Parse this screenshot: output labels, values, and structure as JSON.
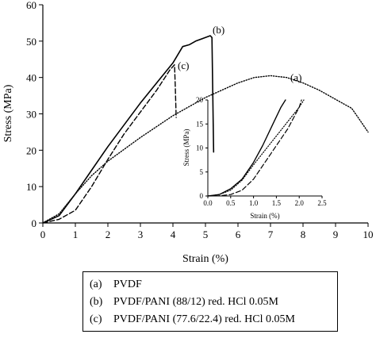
{
  "chart_data": [
    {
      "type": "line",
      "xlabel": "Strain (%)",
      "ylabel": "Stress (MPa)",
      "xlim": [
        0,
        10
      ],
      "ylim": [
        0,
        60
      ],
      "xticks": [
        "0",
        "1",
        "2",
        "3",
        "4",
        "5",
        "6",
        "7",
        "8",
        "9",
        "10"
      ],
      "yticks": [
        "0",
        "10",
        "20",
        "30",
        "40",
        "50",
        "60"
      ],
      "grid": false,
      "series": [
        {
          "name": "(a)",
          "style": "dotted",
          "x": [
            0,
            0.5,
            1,
            1.5,
            2,
            3,
            4,
            5,
            6,
            6.5,
            7,
            7.5,
            8,
            8.5,
            9,
            9.5,
            10
          ],
          "y": [
            0,
            2.5,
            8,
            13,
            17,
            23.5,
            29.5,
            34.5,
            38.5,
            40,
            40.5,
            40,
            38.5,
            36.5,
            34,
            31.5,
            25
          ]
        },
        {
          "name": "(b)",
          "style": "solid",
          "x": [
            0,
            0.5,
            1,
            1.5,
            2,
            2.5,
            3,
            3.5,
            4,
            4.3,
            4.5,
            4.7,
            5,
            5.15,
            5.2,
            5.25
          ],
          "y": [
            0,
            2,
            8,
            14.5,
            21,
            27,
            33,
            38.5,
            44,
            48.5,
            49,
            50,
            51,
            51.5,
            51,
            19.5
          ]
        },
        {
          "name": "(c)",
          "style": "dashed",
          "x": [
            0,
            0.5,
            1,
            1.5,
            2,
            2.5,
            3,
            3.5,
            3.9,
            4.05,
            4.07,
            4.1
          ],
          "y": [
            0,
            1,
            3.5,
            10,
            17.5,
            24.5,
            30.5,
            36.5,
            42,
            43.5,
            38,
            29
          ]
        }
      ],
      "annotations": [
        "(a)",
        "(b)",
        "(c)"
      ]
    },
    {
      "type": "line",
      "xlabel": "Strain (%)",
      "ylabel": "Stress (MPa)",
      "xlim": [
        0,
        2.5
      ],
      "ylim": [
        0,
        20
      ],
      "xticks": [
        "0.0",
        "0.5",
        "1.0",
        "1.5",
        "2.0",
        "2.5"
      ],
      "yticks": [
        "0",
        "5",
        "10",
        "15",
        "20"
      ],
      "series": [
        {
          "name": "(a)",
          "style": "dotted",
          "x": [
            0,
            0.25,
            0.5,
            0.75,
            1.0,
            1.25,
            1.5,
            1.75,
            2.0,
            2.1
          ],
          "y": [
            0,
            0.3,
            1.2,
            3.3,
            6.5,
            9.5,
            12.5,
            15.5,
            18.5,
            20
          ]
        },
        {
          "name": "(b)",
          "style": "solid",
          "x": [
            0,
            0.25,
            0.5,
            0.75,
            1.0,
            1.2,
            1.4,
            1.6,
            1.7
          ],
          "y": [
            0,
            0.3,
            1.5,
            3.5,
            7.0,
            10.5,
            14.5,
            18.5,
            20
          ]
        },
        {
          "name": "(c)",
          "style": "dashed",
          "x": [
            0,
            0.25,
            0.5,
            0.75,
            1.0,
            1.25,
            1.5,
            1.75,
            2.0,
            2.05
          ],
          "y": [
            0,
            0.05,
            0.3,
            1.2,
            3.5,
            7.0,
            10.5,
            14.0,
            18.5,
            20
          ]
        }
      ]
    }
  ],
  "legend": [
    {
      "key": "(a)",
      "label": "PVDF"
    },
    {
      "key": "(b)",
      "label": "PVDF/PANI (88/12) red. HCl 0.05M"
    },
    {
      "key": "(c)",
      "label": "PVDF/PANI (77.6/22.4) red. HCl 0.05M"
    }
  ]
}
